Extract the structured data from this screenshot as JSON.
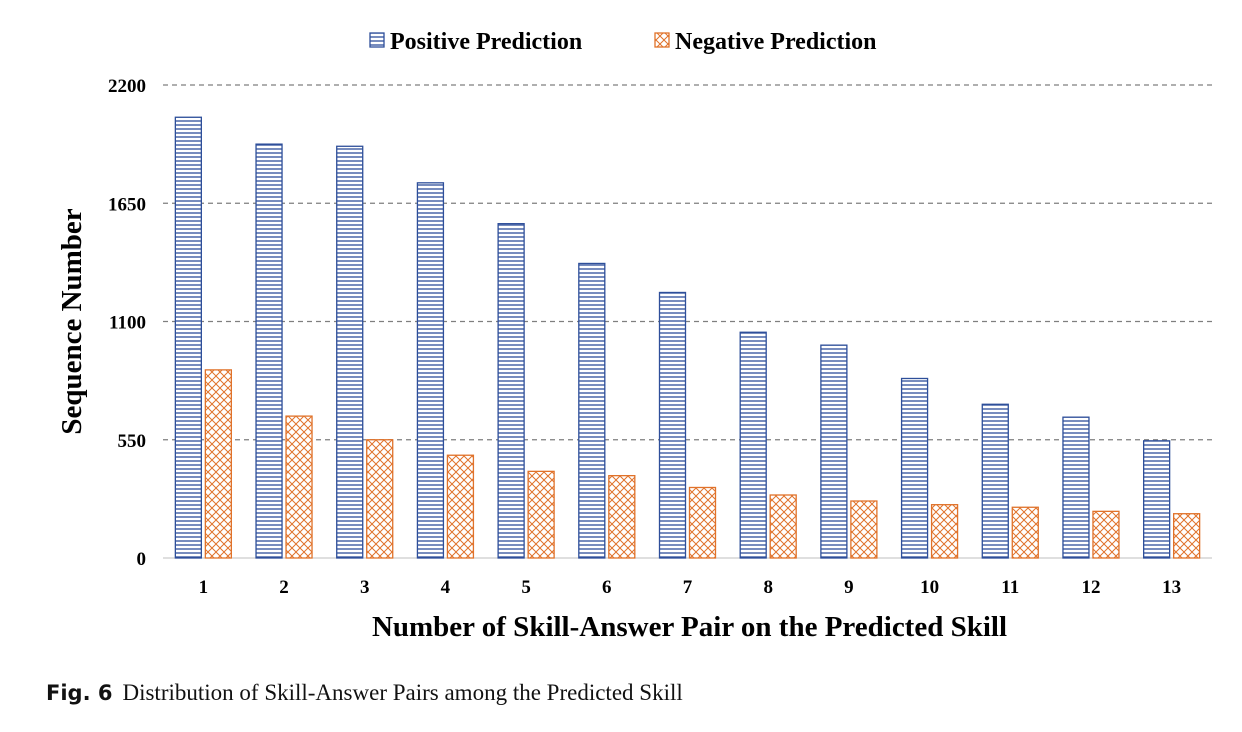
{
  "chart_data": {
    "type": "bar",
    "categories": [
      "1",
      "2",
      "3",
      "4",
      "5",
      "6",
      "7",
      "8",
      "9",
      "10",
      "11",
      "12",
      "13"
    ],
    "series": [
      {
        "name": "Positive Prediction",
        "color": "#2e4f9a",
        "pattern": "horizontal-lines",
        "values": [
          2050,
          1925,
          1915,
          1745,
          1555,
          1370,
          1235,
          1050,
          990,
          835,
          715,
          655,
          545
        ]
      },
      {
        "name": "Negative Prediction",
        "color": "#e0722a",
        "pattern": "crosshatch",
        "values": [
          875,
          660,
          550,
          478,
          403,
          383,
          328,
          293,
          265,
          248,
          236,
          217,
          206
        ]
      }
    ],
    "xlabel": "Number of Skill-Answer Pair on the Predicted Skill",
    "ylabel": "Sequence Number",
    "ylim": [
      0,
      2200
    ],
    "yticks": [
      0,
      550,
      1100,
      1650,
      2200
    ],
    "grid": "dashed-horizontal",
    "legend": "top-center"
  },
  "caption": {
    "label": "Fig. 6",
    "text": "Distribution of Skill-Answer Pairs among the Predicted Skill"
  }
}
